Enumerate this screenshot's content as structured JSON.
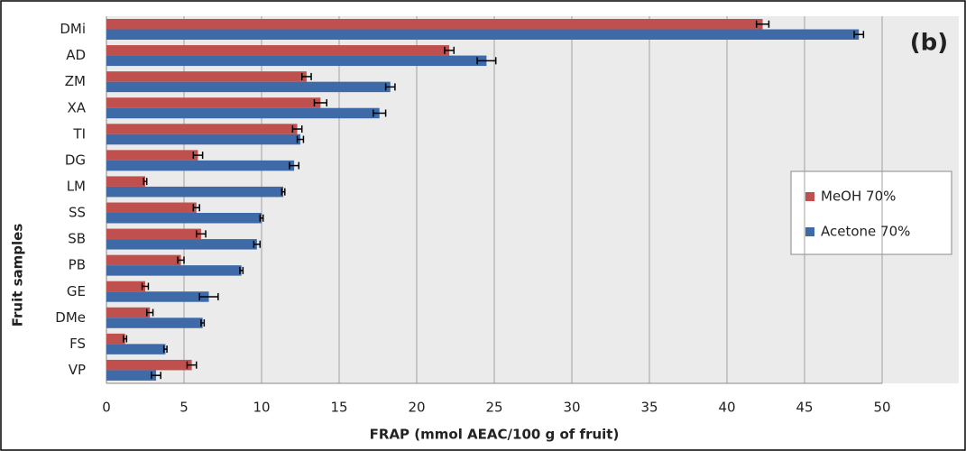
{
  "chart_data": {
    "type": "barh",
    "annotation": "(b)",
    "x_label": "FRAP (mmol AEAC/100 g of fruit)",
    "y_label": "Fruit samples",
    "categories": [
      "DMi",
      "AD",
      "ZM",
      "XA",
      "TI",
      "DG",
      "LM",
      "SS",
      "SB",
      "PB",
      "GE",
      "DMe",
      "FS",
      "VP"
    ],
    "series": [
      {
        "name": "MeOH 70%",
        "color": "#c0504d",
        "values": [
          42.3,
          22.1,
          12.9,
          13.8,
          12.3,
          5.9,
          2.5,
          5.8,
          6.1,
          4.8,
          2.5,
          2.8,
          1.2,
          5.5
        ],
        "errors": [
          0.4,
          0.3,
          0.3,
          0.4,
          0.3,
          0.3,
          0.1,
          0.2,
          0.3,
          0.2,
          0.2,
          0.2,
          0.1,
          0.3
        ]
      },
      {
        "name": "Acetone 70%",
        "color": "#3f6aa8",
        "values": [
          48.5,
          24.5,
          18.3,
          17.6,
          12.5,
          12.1,
          11.4,
          10.0,
          9.7,
          8.7,
          6.6,
          6.2,
          3.8,
          3.2
        ],
        "errors": [
          0.3,
          0.6,
          0.3,
          0.4,
          0.2,
          0.3,
          0.1,
          0.1,
          0.2,
          0.1,
          0.6,
          0.1,
          0.1,
          0.3
        ]
      }
    ],
    "xlim": [
      0,
      50
    ],
    "xticks": [
      0,
      5,
      10,
      15,
      20,
      25,
      30,
      35,
      40,
      45,
      50
    ],
    "grid": true,
    "legend": "right"
  }
}
